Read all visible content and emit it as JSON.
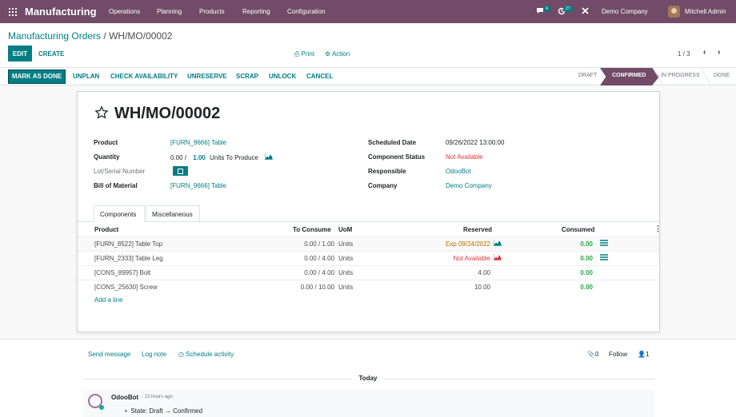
{
  "nav": {
    "app_name": "Manufacturing",
    "menus": [
      "Operations",
      "Planning",
      "Products",
      "Reporting",
      "Configuration"
    ],
    "chat_badge": "4",
    "activity_badge": "27",
    "company": "Demo Company",
    "user": "Mitchell Admin"
  },
  "control": {
    "breadcrumb_parent": "Manufacturing Orders",
    "breadcrumb_sep": " / ",
    "breadcrumb_current": "WH/MO/00002",
    "edit_label": "EDIT",
    "create_label": "CREATE",
    "print_label": "Print",
    "action_label": "Action",
    "pager": "1 / 3"
  },
  "statusbar": {
    "buttons": [
      "MARK AS DONE",
      "UNPLAN",
      "CHECK AVAILABILITY",
      "UNRESERVE",
      "SCRAP",
      "UNLOCK",
      "CANCEL"
    ],
    "stages": [
      "DRAFT",
      "CONFIRMED",
      "IN PROGRESS",
      "DONE"
    ],
    "active_stage": "CONFIRMED"
  },
  "form": {
    "title": "WH/MO/00002",
    "product_label": "Product",
    "product_value": "[FURN_9666] Table",
    "quantity_label": "Quantity",
    "quantity_done": "0.00",
    "quantity_sep": "/",
    "quantity_target": "1.00",
    "quantity_uom": "Units",
    "quantity_suffix": "To Produce",
    "lot_label": "Lot/Serial Number",
    "bom_label": "Bill of Material",
    "bom_value": "[FURN_9666] Table",
    "scheduled_label": "Scheduled Date",
    "scheduled_value": "09/26/2022 13:00:00",
    "component_status_label": "Component Status",
    "component_status_value": "Not Available",
    "responsible_label": "Responsible",
    "responsible_value": "OdooBot",
    "company_label": "Company",
    "company_value": "Demo Company"
  },
  "tabs": [
    "Components",
    "Miscellaneous"
  ],
  "table": {
    "headers": {
      "product": "Product",
      "to_consume": "To Consume",
      "uom": "UoM",
      "reserved": "Reserved",
      "consumed": "Consumed"
    },
    "rows": [
      {
        "product": "[FURN_8522] Table Top",
        "to_consume": "0.00 / 1.00",
        "uom": "Units",
        "reserved": "Exp 09/24/2022",
        "consumed": "0.00"
      },
      {
        "product": "[FURN_2333] Table Leg",
        "to_consume": "0.00 / 4.00",
        "uom": "Units",
        "reserved": "Not Available",
        "consumed": "0.00"
      },
      {
        "product": "[CONS_89957] Bolt",
        "to_consume": "0.00 / 4.00",
        "uom": "Units",
        "reserved": "4.00",
        "consumed": "0.00"
      },
      {
        "product": "[CONS_25630] Screw",
        "to_consume": "0.00 / 10.00",
        "uom": "Units",
        "reserved": "10.00",
        "consumed": "0.00"
      }
    ],
    "add_line": "Add a line"
  },
  "chatter": {
    "send_message": "Send message",
    "log_note": "Log note",
    "schedule_activity": "Schedule activity",
    "attachments": "0",
    "follow": "Follow",
    "followers": "1",
    "today": "Today",
    "author": "OdooBot",
    "time": "- 13 hours ago",
    "body": "State: Draft → Confirmed"
  },
  "colors": {
    "brand": "#714b67",
    "accent": "#017e84",
    "danger": "#d9383d",
    "success": "#28a745",
    "warning": "#b76d00"
  }
}
